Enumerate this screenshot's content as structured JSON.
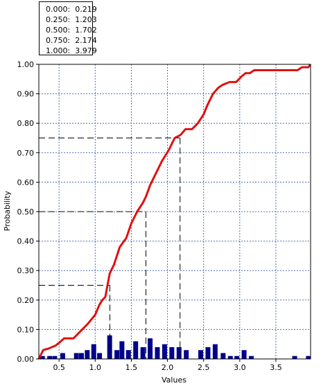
{
  "quantile_table": [
    {
      "q": "0.000:",
      "v": "0.219"
    },
    {
      "q": "0.250:",
      "v": "1.203"
    },
    {
      "q": "0.500:",
      "v": "1.702"
    },
    {
      "q": "0.750:",
      "v": "2.174"
    },
    {
      "q": "1.000:",
      "v": "3.979"
    }
  ],
  "chart_data": {
    "type": "line",
    "title": "",
    "xlabel": "Values",
    "ylabel": "Probability",
    "xlim": [
      0.22,
      3.98
    ],
    "ylim": [
      0,
      1
    ],
    "xticks": [
      "0.5",
      "1.0",
      "1.5",
      "2.0",
      "2.5",
      "3.0",
      "3.5"
    ],
    "xtick_values": [
      0.5,
      1.0,
      1.5,
      2.0,
      2.5,
      3.0,
      3.5
    ],
    "yticks": [
      "0.00",
      "0.10",
      "0.20",
      "0.30",
      "0.40",
      "0.50",
      "0.60",
      "0.70",
      "0.80",
      "0.90",
      "1.00"
    ],
    "ytick_values": [
      0,
      0.1,
      0.2,
      0.3,
      0.4,
      0.5,
      0.6,
      0.7,
      0.8,
      0.9,
      1.0
    ],
    "grid": true,
    "colors": {
      "cdf": "#e01010",
      "bars": "#00008b",
      "grid": "#4a6fb5"
    },
    "cdf": {
      "x": [
        0.219,
        0.28,
        0.35,
        0.45,
        0.5,
        0.57,
        0.7,
        0.78,
        0.9,
        1.0,
        1.06,
        1.1,
        1.14,
        1.2,
        1.26,
        1.34,
        1.43,
        1.5,
        1.58,
        1.66,
        1.7,
        1.76,
        1.84,
        1.92,
        2.02,
        2.1,
        2.18,
        2.25,
        2.34,
        2.42,
        2.5,
        2.55,
        2.63,
        2.7,
        2.76,
        2.86,
        2.95,
        3.03,
        3.08,
        3.14,
        3.2,
        3.27,
        3.4,
        3.55,
        3.7,
        3.75,
        3.8,
        3.86,
        3.95,
        3.979
      ],
      "y": [
        0.0,
        0.03,
        0.035,
        0.045,
        0.055,
        0.07,
        0.07,
        0.09,
        0.12,
        0.15,
        0.185,
        0.2,
        0.21,
        0.29,
        0.32,
        0.38,
        0.41,
        0.46,
        0.5,
        0.53,
        0.55,
        0.59,
        0.63,
        0.67,
        0.71,
        0.75,
        0.76,
        0.78,
        0.78,
        0.8,
        0.83,
        0.86,
        0.9,
        0.92,
        0.93,
        0.94,
        0.94,
        0.96,
        0.97,
        0.97,
        0.98,
        0.98,
        0.98,
        0.98,
        0.98,
        0.98,
        0.98,
        0.99,
        0.99,
        1.0
      ]
    },
    "histogram": {
      "x": [
        0.27,
        0.37,
        0.44,
        0.55,
        0.74,
        0.81,
        0.89,
        0.98,
        1.06,
        1.2,
        1.3,
        1.37,
        1.46,
        1.56,
        1.66,
        1.76,
        1.86,
        1.96,
        2.06,
        2.16,
        2.26,
        2.46,
        2.56,
        2.66,
        2.77,
        2.87,
        2.96,
        3.06,
        3.16,
        3.76,
        3.95
      ],
      "y": [
        0.01,
        0.01,
        0.01,
        0.02,
        0.02,
        0.02,
        0.03,
        0.05,
        0.02,
        0.08,
        0.03,
        0.06,
        0.03,
        0.06,
        0.04,
        0.07,
        0.04,
        0.05,
        0.04,
        0.04,
        0.03,
        0.03,
        0.04,
        0.05,
        0.02,
        0.01,
        0.01,
        0.03,
        0.01,
        0.01,
        0.01
      ]
    },
    "quantile_guides": [
      {
        "p": 0.25,
        "x": 1.203
      },
      {
        "p": 0.5,
        "x": 1.702
      },
      {
        "p": 0.75,
        "x": 2.174
      }
    ]
  }
}
